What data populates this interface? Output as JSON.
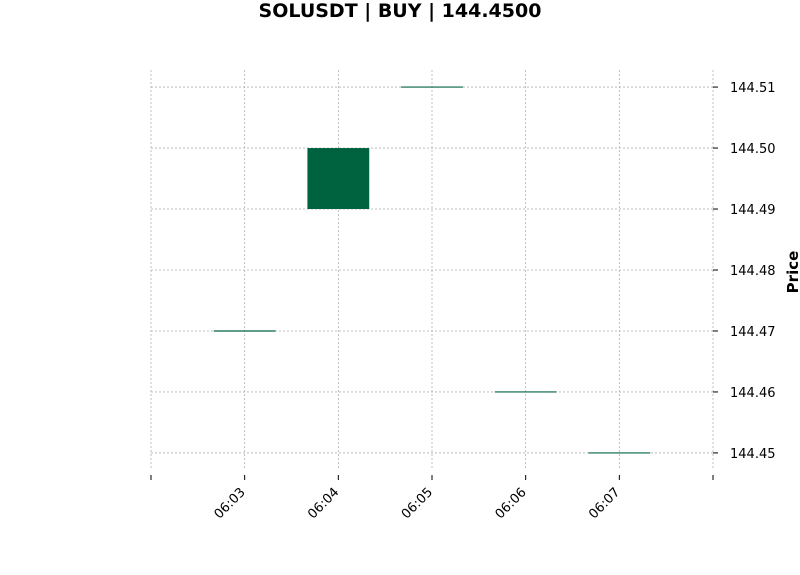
{
  "chart_data": {
    "type": "candlestick",
    "title": "SOLUSDT | BUY | 144.4500",
    "ylabel": "Price",
    "xlabel": "",
    "x": [
      "06:03",
      "06:04",
      "06:05",
      "06:06",
      "06:07"
    ],
    "ohlc": [
      {
        "time": "06:03",
        "open": 144.47,
        "high": 144.47,
        "low": 144.47,
        "close": 144.47
      },
      {
        "time": "06:04",
        "open": 144.49,
        "high": 144.5,
        "low": 144.49,
        "close": 144.5
      },
      {
        "time": "06:05",
        "open": 144.51,
        "high": 144.51,
        "low": 144.51,
        "close": 144.51
      },
      {
        "time": "06:06",
        "open": 144.46,
        "high": 144.46,
        "low": 144.46,
        "close": 144.46
      },
      {
        "time": "06:07",
        "open": 144.45,
        "high": 144.45,
        "low": 144.45,
        "close": 144.45
      }
    ],
    "yticks": [
      "144.45",
      "144.46",
      "144.47",
      "144.48",
      "144.49",
      "144.50",
      "144.51"
    ],
    "ylim": [
      144.4472,
      144.5128
    ],
    "xlim": [
      1,
      7
    ],
    "grid": true,
    "y_axis_side": "right",
    "colors": {
      "up": "#006340",
      "down": "#c80000",
      "grid": "#b0b0b0"
    }
  }
}
